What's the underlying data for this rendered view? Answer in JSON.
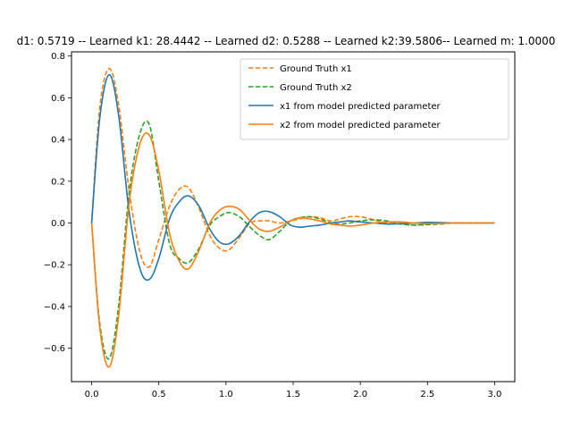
{
  "chart_data": {
    "type": "line",
    "title": "d1: 0.5719 -- Learned k1: 28.4442 -- Learned d2: 0.5288 -- Learned k2:39.5806-- Learned m: 1.0000",
    "xlabel": "",
    "ylabel": "",
    "xlim": [
      -0.15,
      3.15
    ],
    "ylim": [
      -0.76,
      0.82
    ],
    "xticks": [
      0.0,
      0.5,
      1.0,
      1.5,
      2.0,
      2.5,
      3.0
    ],
    "xtick_labels": [
      "0.0",
      "0.5",
      "1.0",
      "1.5",
      "2.0",
      "2.5",
      "3.0"
    ],
    "yticks": [
      -0.6,
      -0.4,
      -0.2,
      0.0,
      0.2,
      0.4,
      0.6,
      0.8
    ],
    "ytick_labels": [
      "−0.6",
      "−0.4",
      "−0.2",
      "0.0",
      "0.2",
      "0.4",
      "0.6",
      "0.8"
    ],
    "grid": false,
    "legend_position": "upper-right",
    "series": [
      {
        "name": "Ground Truth x1",
        "color": "#ff7f0e",
        "linestyle": "dashed",
        "x": [
          0.0,
          0.06,
          0.13,
          0.2,
          0.28,
          0.36,
          0.43,
          0.5,
          0.58,
          0.65,
          0.72,
          0.8,
          0.88,
          0.95,
          1.02,
          1.1,
          1.18,
          1.25,
          1.32,
          1.4,
          1.48,
          1.55,
          1.62,
          1.7,
          1.78,
          1.85,
          1.92,
          2.0,
          2.1,
          2.2,
          2.3,
          2.4,
          2.5,
          2.6,
          2.7,
          2.8,
          2.9,
          3.0
        ],
        "y": [
          0.0,
          0.55,
          0.74,
          0.57,
          0.15,
          -0.14,
          -0.21,
          -0.08,
          0.08,
          0.16,
          0.17,
          0.07,
          -0.06,
          -0.12,
          -0.13,
          -0.07,
          0.0,
          0.01,
          0.01,
          0.0,
          0.01,
          0.02,
          0.03,
          0.025,
          0.01,
          0.02,
          0.03,
          0.03,
          0.015,
          0.0,
          -0.005,
          -0.01,
          -0.005,
          0.0,
          0.0,
          0.0,
          0.0,
          0.0
        ]
      },
      {
        "name": "Ground Truth x2",
        "color": "#2ca02c",
        "linestyle": "dashed",
        "x": [
          0.0,
          0.06,
          0.13,
          0.2,
          0.28,
          0.36,
          0.43,
          0.5,
          0.58,
          0.65,
          0.72,
          0.8,
          0.88,
          0.95,
          1.02,
          1.1,
          1.18,
          1.25,
          1.32,
          1.4,
          1.48,
          1.55,
          1.62,
          1.7,
          1.78,
          1.85,
          1.92,
          2.0,
          2.1,
          2.2,
          2.3,
          2.4,
          2.5,
          2.6,
          2.7,
          2.8,
          2.9,
          3.0
        ],
        "y": [
          0.0,
          -0.48,
          -0.65,
          -0.4,
          0.15,
          0.43,
          0.47,
          0.2,
          -0.1,
          -0.17,
          -0.19,
          -0.12,
          -0.01,
          0.03,
          0.05,
          0.03,
          -0.02,
          -0.06,
          -0.08,
          -0.04,
          0.01,
          0.025,
          0.03,
          0.02,
          0.0,
          -0.005,
          0.0,
          0.01,
          0.015,
          0.01,
          -0.005,
          -0.01,
          -0.008,
          -0.005,
          0.0,
          0.0,
          0.0,
          0.0
        ]
      },
      {
        "name": "x1 from model predicted parameter",
        "color": "#1f77b4",
        "linestyle": "solid",
        "x": [
          0.0,
          0.06,
          0.13,
          0.2,
          0.28,
          0.36,
          0.43,
          0.5,
          0.58,
          0.65,
          0.72,
          0.8,
          0.88,
          0.95,
          1.02,
          1.1,
          1.18,
          1.25,
          1.32,
          1.4,
          1.48,
          1.55,
          1.62,
          1.7,
          1.78,
          1.85,
          1.92,
          2.0,
          2.1,
          2.2,
          2.3,
          2.4,
          2.5,
          2.6,
          2.7,
          2.8,
          2.9,
          3.0
        ],
        "y": [
          0.0,
          0.5,
          0.71,
          0.52,
          0.05,
          -0.22,
          -0.27,
          -0.17,
          0.02,
          0.1,
          0.13,
          0.08,
          -0.03,
          -0.09,
          -0.1,
          -0.06,
          0.01,
          0.05,
          0.055,
          0.03,
          -0.01,
          -0.02,
          -0.015,
          -0.01,
          0.0,
          0.005,
          0.01,
          0.005,
          0.0,
          -0.005,
          -0.003,
          0.0,
          0.003,
          0.002,
          0.0,
          0.0,
          0.0,
          0.0
        ]
      },
      {
        "name": "x2 from model predicted parameter",
        "color": "#ff7f0e",
        "linestyle": "solid",
        "x": [
          0.0,
          0.06,
          0.13,
          0.2,
          0.28,
          0.36,
          0.43,
          0.5,
          0.58,
          0.65,
          0.72,
          0.8,
          0.88,
          0.95,
          1.02,
          1.1,
          1.18,
          1.25,
          1.32,
          1.4,
          1.48,
          1.55,
          1.62,
          1.7,
          1.78,
          1.85,
          1.92,
          2.0,
          2.1,
          2.2,
          2.3,
          2.4,
          2.5,
          2.6,
          2.7,
          2.8,
          2.9,
          3.0
        ],
        "y": [
          0.0,
          -0.5,
          -0.69,
          -0.45,
          0.1,
          0.38,
          0.42,
          0.25,
          -0.05,
          -0.18,
          -0.22,
          -0.13,
          0.0,
          0.06,
          0.08,
          0.065,
          0.01,
          -0.03,
          -0.04,
          -0.02,
          0.01,
          0.025,
          0.02,
          0.01,
          -0.005,
          -0.01,
          -0.015,
          -0.01,
          0.0,
          0.005,
          0.005,
          0.0,
          -0.003,
          -0.002,
          0.0,
          0.0,
          0.0,
          0.0
        ]
      }
    ]
  }
}
